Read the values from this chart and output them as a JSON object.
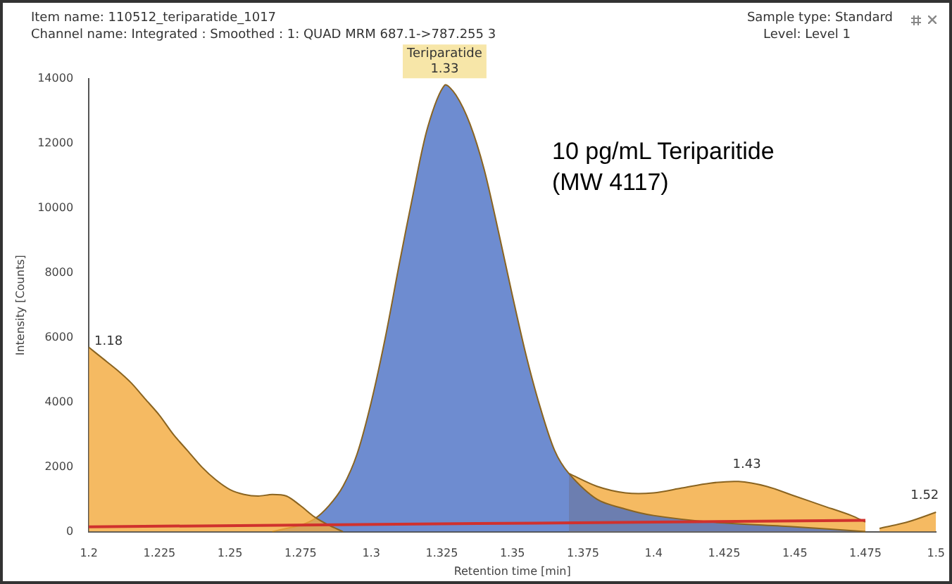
{
  "chart_data": {
    "type": "area",
    "xlabel": "Retention time [min]",
    "ylabel": "Intensity [Counts]",
    "xlim": [
      1.2,
      1.5
    ],
    "xticks": [
      1.2,
      1.225,
      1.25,
      1.275,
      1.3,
      1.325,
      1.35,
      1.375,
      1.4,
      1.425,
      1.45,
      1.475,
      1.5
    ],
    "ylim": [
      0,
      14000
    ],
    "yticks": [
      0,
      2000,
      4000,
      6000,
      8000,
      10000,
      12000,
      14000
    ],
    "grid": false,
    "legend": false,
    "series": [
      {
        "color": "#f2a93b",
        "x": [
          1.2,
          1.205,
          1.21,
          1.215,
          1.22,
          1.225,
          1.23,
          1.235,
          1.24,
          1.245,
          1.25,
          1.255,
          1.26,
          1.265,
          1.27,
          1.275,
          1.28,
          1.285,
          1.29
        ],
        "values": [
          5700,
          5350,
          5000,
          4600,
          4100,
          3600,
          3000,
          2500,
          2000,
          1600,
          1300,
          1150,
          1100,
          1150,
          1100,
          800,
          450,
          200,
          0
        ]
      },
      {
        "color": "#4a6fc4",
        "x": [
          1.265,
          1.27,
          1.275,
          1.28,
          1.285,
          1.29,
          1.295,
          1.3,
          1.305,
          1.31,
          1.315,
          1.32,
          1.326,
          1.33,
          1.335,
          1.34,
          1.345,
          1.35,
          1.355,
          1.36,
          1.365,
          1.37,
          1.38,
          1.39,
          1.4,
          1.42,
          1.45,
          1.475
        ],
        "values": [
          0,
          100,
          200,
          400,
          800,
          1400,
          2400,
          4000,
          6000,
          8300,
          10500,
          12500,
          13800,
          13500,
          12600,
          11200,
          9300,
          7300,
          5400,
          3800,
          2500,
          1800,
          1000,
          700,
          500,
          300,
          150,
          0
        ]
      },
      {
        "color": "#f2a93b",
        "x": [
          1.37,
          1.38,
          1.39,
          1.4,
          1.41,
          1.42,
          1.43,
          1.44,
          1.45,
          1.46,
          1.47,
          1.475
        ],
        "values": [
          1800,
          1400,
          1200,
          1200,
          1350,
          1500,
          1550,
          1400,
          1100,
          800,
          500,
          300
        ]
      },
      {
        "color": "#f2a93b",
        "x": [
          1.48,
          1.49,
          1.5
        ],
        "values": [
          100,
          300,
          600
        ]
      },
      {
        "type": "line",
        "color": "#d0312d",
        "x": [
          1.2,
          1.475
        ],
        "values": [
          150,
          350
        ]
      }
    ],
    "annotations": [
      "Item name: 110512_teriparatide_1017",
      "Channel name: Integrated : Smoothed : 1: QUAD MRM 687.1->787.255 3",
      "Sample type: Standard",
      "Level: Level 1",
      "10 pg/mL Teriparitide",
      "(MW 4117)",
      {
        "text": "1.18",
        "x": 1.204,
        "y": 5350
      },
      {
        "text": "Teriparatide",
        "x": 1.326,
        "y": 13800
      },
      {
        "text": "1.33",
        "x": 1.326,
        "y": 13800
      },
      {
        "text": "1.43",
        "x": 1.43,
        "y": 1550
      },
      {
        "text": "1.52",
        "x": 1.5,
        "y": 600
      }
    ]
  }
}
